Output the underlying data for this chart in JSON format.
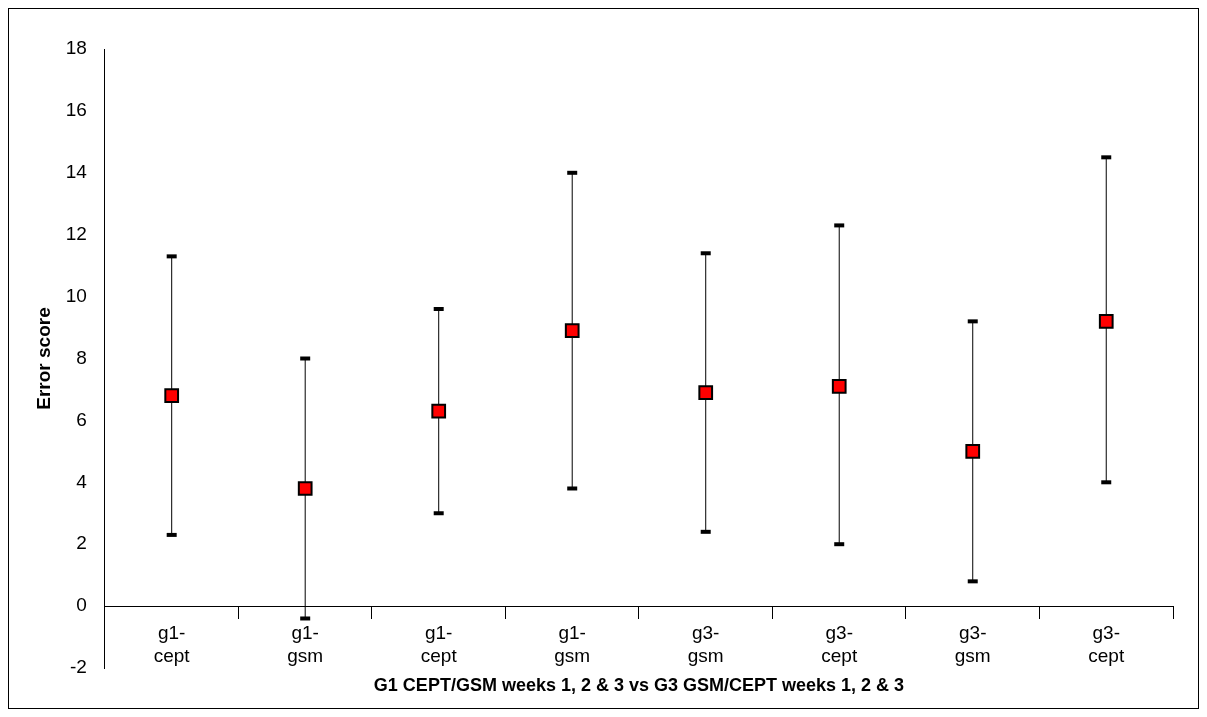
{
  "chart_data": {
    "type": "scatter",
    "xlabel": "G1 CEPT/GSM weeks 1, 2 & 3 vs G3 GSM/CEPT weeks 1, 2 & 3",
    "ylabel": "Error score",
    "categories": [
      "g1-cept",
      "g1-gsm",
      "g1-cept",
      "g1-gsm",
      "g3-gsm",
      "g3-cept",
      "g3-gsm",
      "g3-cept"
    ],
    "values": [
      6.8,
      3.8,
      6.3,
      8.9,
      6.9,
      7.1,
      5.0,
      9.2
    ],
    "errors": [
      [
        2.3,
        11.3
      ],
      [
        -0.4,
        8.0
      ],
      [
        3.0,
        9.6
      ],
      [
        3.8,
        14.0
      ],
      [
        2.4,
        11.4
      ],
      [
        2.0,
        12.3
      ],
      [
        0.8,
        9.2
      ],
      [
        4.0,
        14.5
      ]
    ],
    "color": "#ff0000",
    "marker": "square",
    "ylim": [
      -2,
      18
    ],
    "yticks": [
      -2,
      0,
      2,
      4,
      6,
      8,
      10,
      12,
      14,
      16,
      18
    ]
  }
}
